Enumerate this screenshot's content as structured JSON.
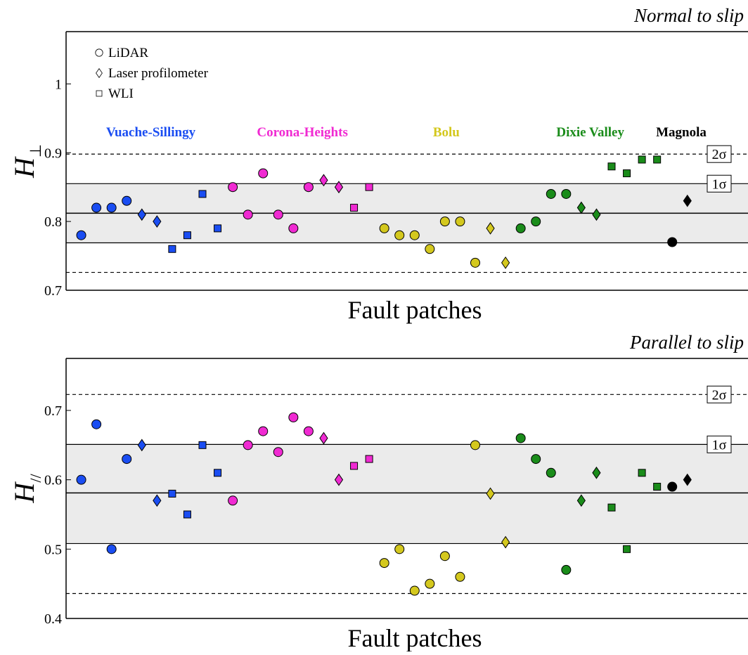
{
  "chart_data": [
    {
      "type": "scatter",
      "title": "Normal to slip",
      "xlabel": "Fault patches",
      "ylabel": "H",
      "ylabel_sub": "⊥",
      "xlim": [
        0,
        45
      ],
      "ylim": [
        0.7,
        1.076
      ],
      "yticks": [
        0.7,
        0.8,
        0.9,
        1
      ],
      "mean": 0.812,
      "bands": [
        {
          "label": "1σ",
          "lower": 0.769,
          "upper": 0.855
        },
        {
          "label": "2σ",
          "lower": 0.726,
          "upper": 0.898
        }
      ],
      "legend": [
        {
          "label": "LiDAR",
          "marker": "circle"
        },
        {
          "label": "Laser profilometer",
          "marker": "diamond"
        },
        {
          "label": "WLI",
          "marker": "square"
        }
      ],
      "series": [
        {
          "name": "Vuache-Sillingy",
          "color": "#1a4df2",
          "x": [
            1,
            2,
            3,
            4,
            5,
            6,
            7,
            8,
            9,
            10
          ],
          "values": [
            0.78,
            0.82,
            0.82,
            0.83,
            0.81,
            0.8,
            0.76,
            0.78,
            0.84,
            0.79
          ],
          "markers": [
            "circle",
            "circle",
            "circle",
            "circle",
            "diamond",
            "diamond",
            "square",
            "square",
            "square",
            "square"
          ]
        },
        {
          "name": "Corona-Heights",
          "color": "#f02ad2",
          "x": [
            11,
            12,
            13,
            14,
            15,
            16,
            17,
            18,
            19,
            20
          ],
          "values": [
            0.85,
            0.81,
            0.87,
            0.81,
            0.79,
            0.85,
            0.86,
            0.85,
            0.82,
            0.85
          ],
          "markers": [
            "circle",
            "circle",
            "circle",
            "circle",
            "circle",
            "circle",
            "diamond",
            "diamond",
            "square",
            "square"
          ]
        },
        {
          "name": "Bolu",
          "color": "#d4c81e",
          "x": [
            21,
            22,
            23,
            24,
            25,
            26,
            27,
            28,
            29
          ],
          "values": [
            0.79,
            0.78,
            0.78,
            0.76,
            0.8,
            0.8,
            0.74,
            0.79,
            0.74
          ],
          "markers": [
            "circle",
            "circle",
            "circle",
            "circle",
            "circle",
            "circle",
            "circle",
            "diamond",
            "diamond"
          ]
        },
        {
          "name": "Dixie Valley",
          "color": "#1a8c1a",
          "x": [
            30,
            31,
            32,
            33,
            34,
            35,
            36,
            37,
            38,
            39
          ],
          "values": [
            0.79,
            0.8,
            0.84,
            0.84,
            0.82,
            0.81,
            0.88,
            0.87,
            0.89,
            0.89
          ],
          "markers": [
            "circle",
            "circle",
            "circle",
            "circle",
            "diamond",
            "diamond",
            "square",
            "square",
            "square",
            "square"
          ]
        },
        {
          "name": "Magnola",
          "color": "#000000",
          "x": [
            40,
            41
          ],
          "values": [
            0.77,
            0.83
          ],
          "markers": [
            "circle",
            "diamond"
          ]
        }
      ]
    },
    {
      "type": "scatter",
      "title": "Parallel to slip",
      "xlabel": "Fault patches",
      "ylabel": "H",
      "ylabel_sub": "//",
      "xlim": [
        0,
        45
      ],
      "ylim": [
        0.4,
        0.775
      ],
      "yticks": [
        0.4,
        0.5,
        0.6,
        0.7
      ],
      "mean": 0.581,
      "bands": [
        {
          "label": "1σ",
          "lower": 0.508,
          "upper": 0.651
        },
        {
          "label": "2σ",
          "lower": 0.436,
          "upper": 0.723
        }
      ],
      "series": [
        {
          "color": "#1a4df2",
          "x": [
            1,
            2,
            3,
            4,
            5,
            6,
            7,
            8,
            9,
            10
          ],
          "values": [
            0.6,
            0.68,
            0.5,
            0.63,
            0.65,
            0.57,
            0.58,
            0.55,
            0.65,
            0.61
          ],
          "markers": [
            "circle",
            "circle",
            "circle",
            "circle",
            "diamond",
            "diamond",
            "square",
            "square",
            "square",
            "square"
          ]
        },
        {
          "color": "#f02ad2",
          "x": [
            11,
            12,
            13,
            14,
            15,
            16,
            17,
            18,
            19,
            20
          ],
          "values": [
            0.57,
            0.65,
            0.67,
            0.64,
            0.69,
            0.67,
            0.66,
            0.6,
            0.62,
            0.63
          ],
          "markers": [
            "circle",
            "circle",
            "circle",
            "circle",
            "circle",
            "circle",
            "diamond",
            "diamond",
            "square",
            "square"
          ]
        },
        {
          "color": "#d4c81e",
          "x": [
            21,
            22,
            23,
            24,
            25,
            26,
            27,
            28,
            29
          ],
          "values": [
            0.48,
            0.5,
            0.44,
            0.45,
            0.49,
            0.46,
            0.65,
            0.58,
            0.51
          ],
          "markers": [
            "circle",
            "circle",
            "circle",
            "circle",
            "circle",
            "circle",
            "circle",
            "diamond",
            "diamond"
          ]
        },
        {
          "color": "#1a8c1a",
          "x": [
            30,
            31,
            32,
            33,
            34,
            35,
            36,
            37,
            38,
            39
          ],
          "values": [
            0.66,
            0.63,
            0.61,
            0.47,
            0.57,
            0.61,
            0.56,
            0.5,
            0.61,
            0.59
          ],
          "markers": [
            "circle",
            "circle",
            "circle",
            "circle",
            "diamond",
            "diamond",
            "square",
            "square",
            "square",
            "square"
          ]
        },
        {
          "color": "#000000",
          "x": [
            40,
            41
          ],
          "values": [
            0.59,
            0.6
          ],
          "markers": [
            "circle",
            "diamond"
          ]
        }
      ]
    }
  ]
}
